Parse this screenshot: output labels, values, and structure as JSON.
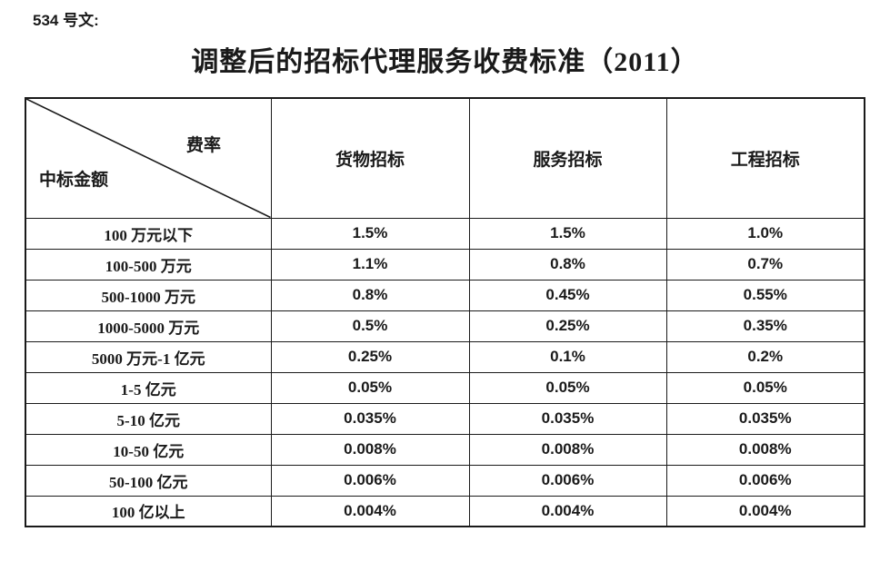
{
  "page": {
    "doc_label": "534 号文:",
    "title": "调整后的招标代理服务收费标准（2011）"
  },
  "table": {
    "corner": {
      "top_right": "费率",
      "bottom_left": "中标金额"
    },
    "columns": [
      "货物招标",
      "服务招标",
      "工程招标"
    ],
    "rows": [
      {
        "label": "100 万元以下",
        "values": [
          "1.5%",
          "1.5%",
          "1.0%"
        ]
      },
      {
        "label": "100-500 万元",
        "values": [
          "1.1%",
          "0.8%",
          "0.7%"
        ]
      },
      {
        "label": "500-1000 万元",
        "values": [
          "0.8%",
          "0.45%",
          "0.55%"
        ]
      },
      {
        "label": "1000-5000 万元",
        "values": [
          "0.5%",
          "0.25%",
          "0.35%"
        ]
      },
      {
        "label": "5000 万元-1 亿元",
        "values": [
          "0.25%",
          "0.1%",
          "0.2%"
        ]
      },
      {
        "label": "1-5 亿元",
        "values": [
          "0.05%",
          "0.05%",
          "0.05%"
        ]
      },
      {
        "label": "5-10 亿元",
        "values": [
          "0.035%",
          "0.035%",
          "0.035%"
        ]
      },
      {
        "label": "10-50 亿元",
        "values": [
          "0.008%",
          "0.008%",
          "0.008%"
        ]
      },
      {
        "label": "50-100 亿元",
        "values": [
          "0.006%",
          "0.006%",
          "0.006%"
        ]
      },
      {
        "label": "100 亿以上",
        "values": [
          "0.004%",
          "0.004%",
          "0.004%"
        ]
      }
    ],
    "line_color": "#1a1a1a"
  }
}
